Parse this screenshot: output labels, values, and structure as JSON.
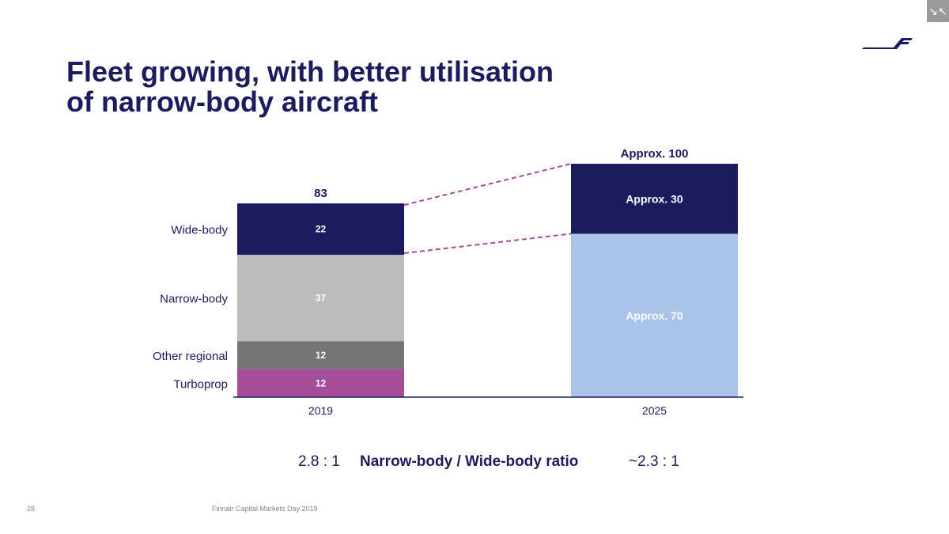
{
  "title_lines": [
    "Fleet growing, with better utilisation",
    "of narrow-body aircraft"
  ],
  "colors": {
    "navy": "#1b1b5e",
    "widebody": "#1b1b5e",
    "narrowbody": "#bcbcbc",
    "other_regional": "#757575",
    "turboprop": "#a64d9a",
    "narrowbody_2025": "#a9c4e8",
    "connector": "#a64d9a"
  },
  "chart_data": {
    "type": "bar",
    "stacked": true,
    "categories": [
      "2019",
      "2025"
    ],
    "series": [
      {
        "name": "Turboprop",
        "values": [
          12,
          null
        ]
      },
      {
        "name": "Other regional",
        "values": [
          12,
          null
        ]
      },
      {
        "name": "Narrow-body",
        "values": [
          37,
          70
        ]
      },
      {
        "name": "Wide-body",
        "values": [
          22,
          30
        ]
      }
    ],
    "segment_labels": {
      "2019": [
        "12",
        "12",
        "37",
        "22"
      ],
      "2025": [
        "Approx. 70",
        "Approx. 30"
      ]
    },
    "totals": [
      "83",
      "Approx. 100"
    ],
    "ylim": [
      0,
      100
    ],
    "grid": false
  },
  "ratios": {
    "left": "2.8 : 1",
    "label": "Narrow-body / Wide-body ratio",
    "right": "~2.3 : 1"
  },
  "footer": {
    "page": "28",
    "text": "Finnair Capital Markets Day 2019"
  },
  "icons": {
    "collapse": "collapse-icon",
    "logo": "finnair-logo"
  }
}
